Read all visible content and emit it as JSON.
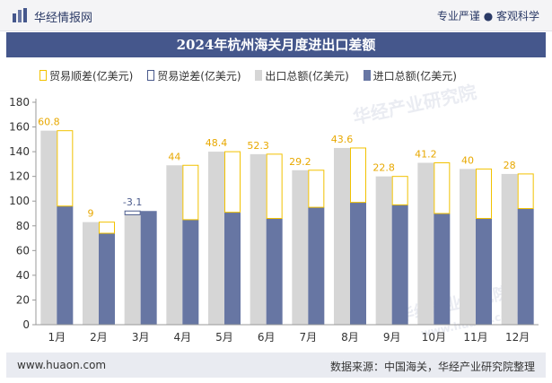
{
  "header": {
    "brand_name": "华经情报网",
    "tagline": "专业严谨 ● 客观科学"
  },
  "watermarks": {
    "text1": "华经产业研究院",
    "text2": "华经产业研究院",
    "url": "www.huaon.com"
  },
  "footer": {
    "url": "www.huaon.com",
    "source": "数据来源：中国海关，华经产业研究院整理"
  },
  "colors": {
    "title_bg": "#45578c",
    "export_bar": "#d6d6d6",
    "import_bar": "#6776a3",
    "surplus_outline": "#f2c200",
    "deficit_outline": "#4a5a8c",
    "surplus_label": "#e8a800",
    "deficit_label": "#4a5a8c"
  },
  "chart_data": {
    "type": "bar",
    "title": "2024年杭州海关月度进出口差额",
    "categories": [
      "1月",
      "2月",
      "3月",
      "4月",
      "5月",
      "6月",
      "7月",
      "8月",
      "9月",
      "10月",
      "11月",
      "12月"
    ],
    "series": [
      {
        "name": "贸易顺差(亿美元)",
        "values": [
          60.8,
          9,
          null,
          44,
          48.4,
          52.3,
          29.2,
          43.6,
          22.8,
          41.2,
          40,
          28
        ]
      },
      {
        "name": "贸易逆差(亿美元)",
        "values": [
          null,
          null,
          -3.1,
          null,
          null,
          null,
          null,
          null,
          null,
          null,
          null,
          null
        ]
      },
      {
        "name": "出口总额(亿美元)",
        "values": [
          157,
          83,
          89,
          129,
          140,
          138,
          125,
          143,
          120,
          131,
          126,
          122
        ]
      },
      {
        "name": "进口总额(亿美元)",
        "values": [
          96,
          74,
          92,
          85,
          91,
          86,
          95,
          99,
          97,
          90,
          86,
          94
        ]
      }
    ],
    "data_labels": [
      "60.8",
      "9",
      "-3.1",
      "44",
      "48.4",
      "52.3",
      "29.2",
      "43.6",
      "22.8",
      "41.2",
      "40",
      "28"
    ],
    "ylim": [
      0,
      180
    ],
    "yticks": [
      0,
      20,
      40,
      60,
      80,
      100,
      120,
      140,
      160,
      180
    ],
    "legend_position": "top",
    "grid": false
  }
}
